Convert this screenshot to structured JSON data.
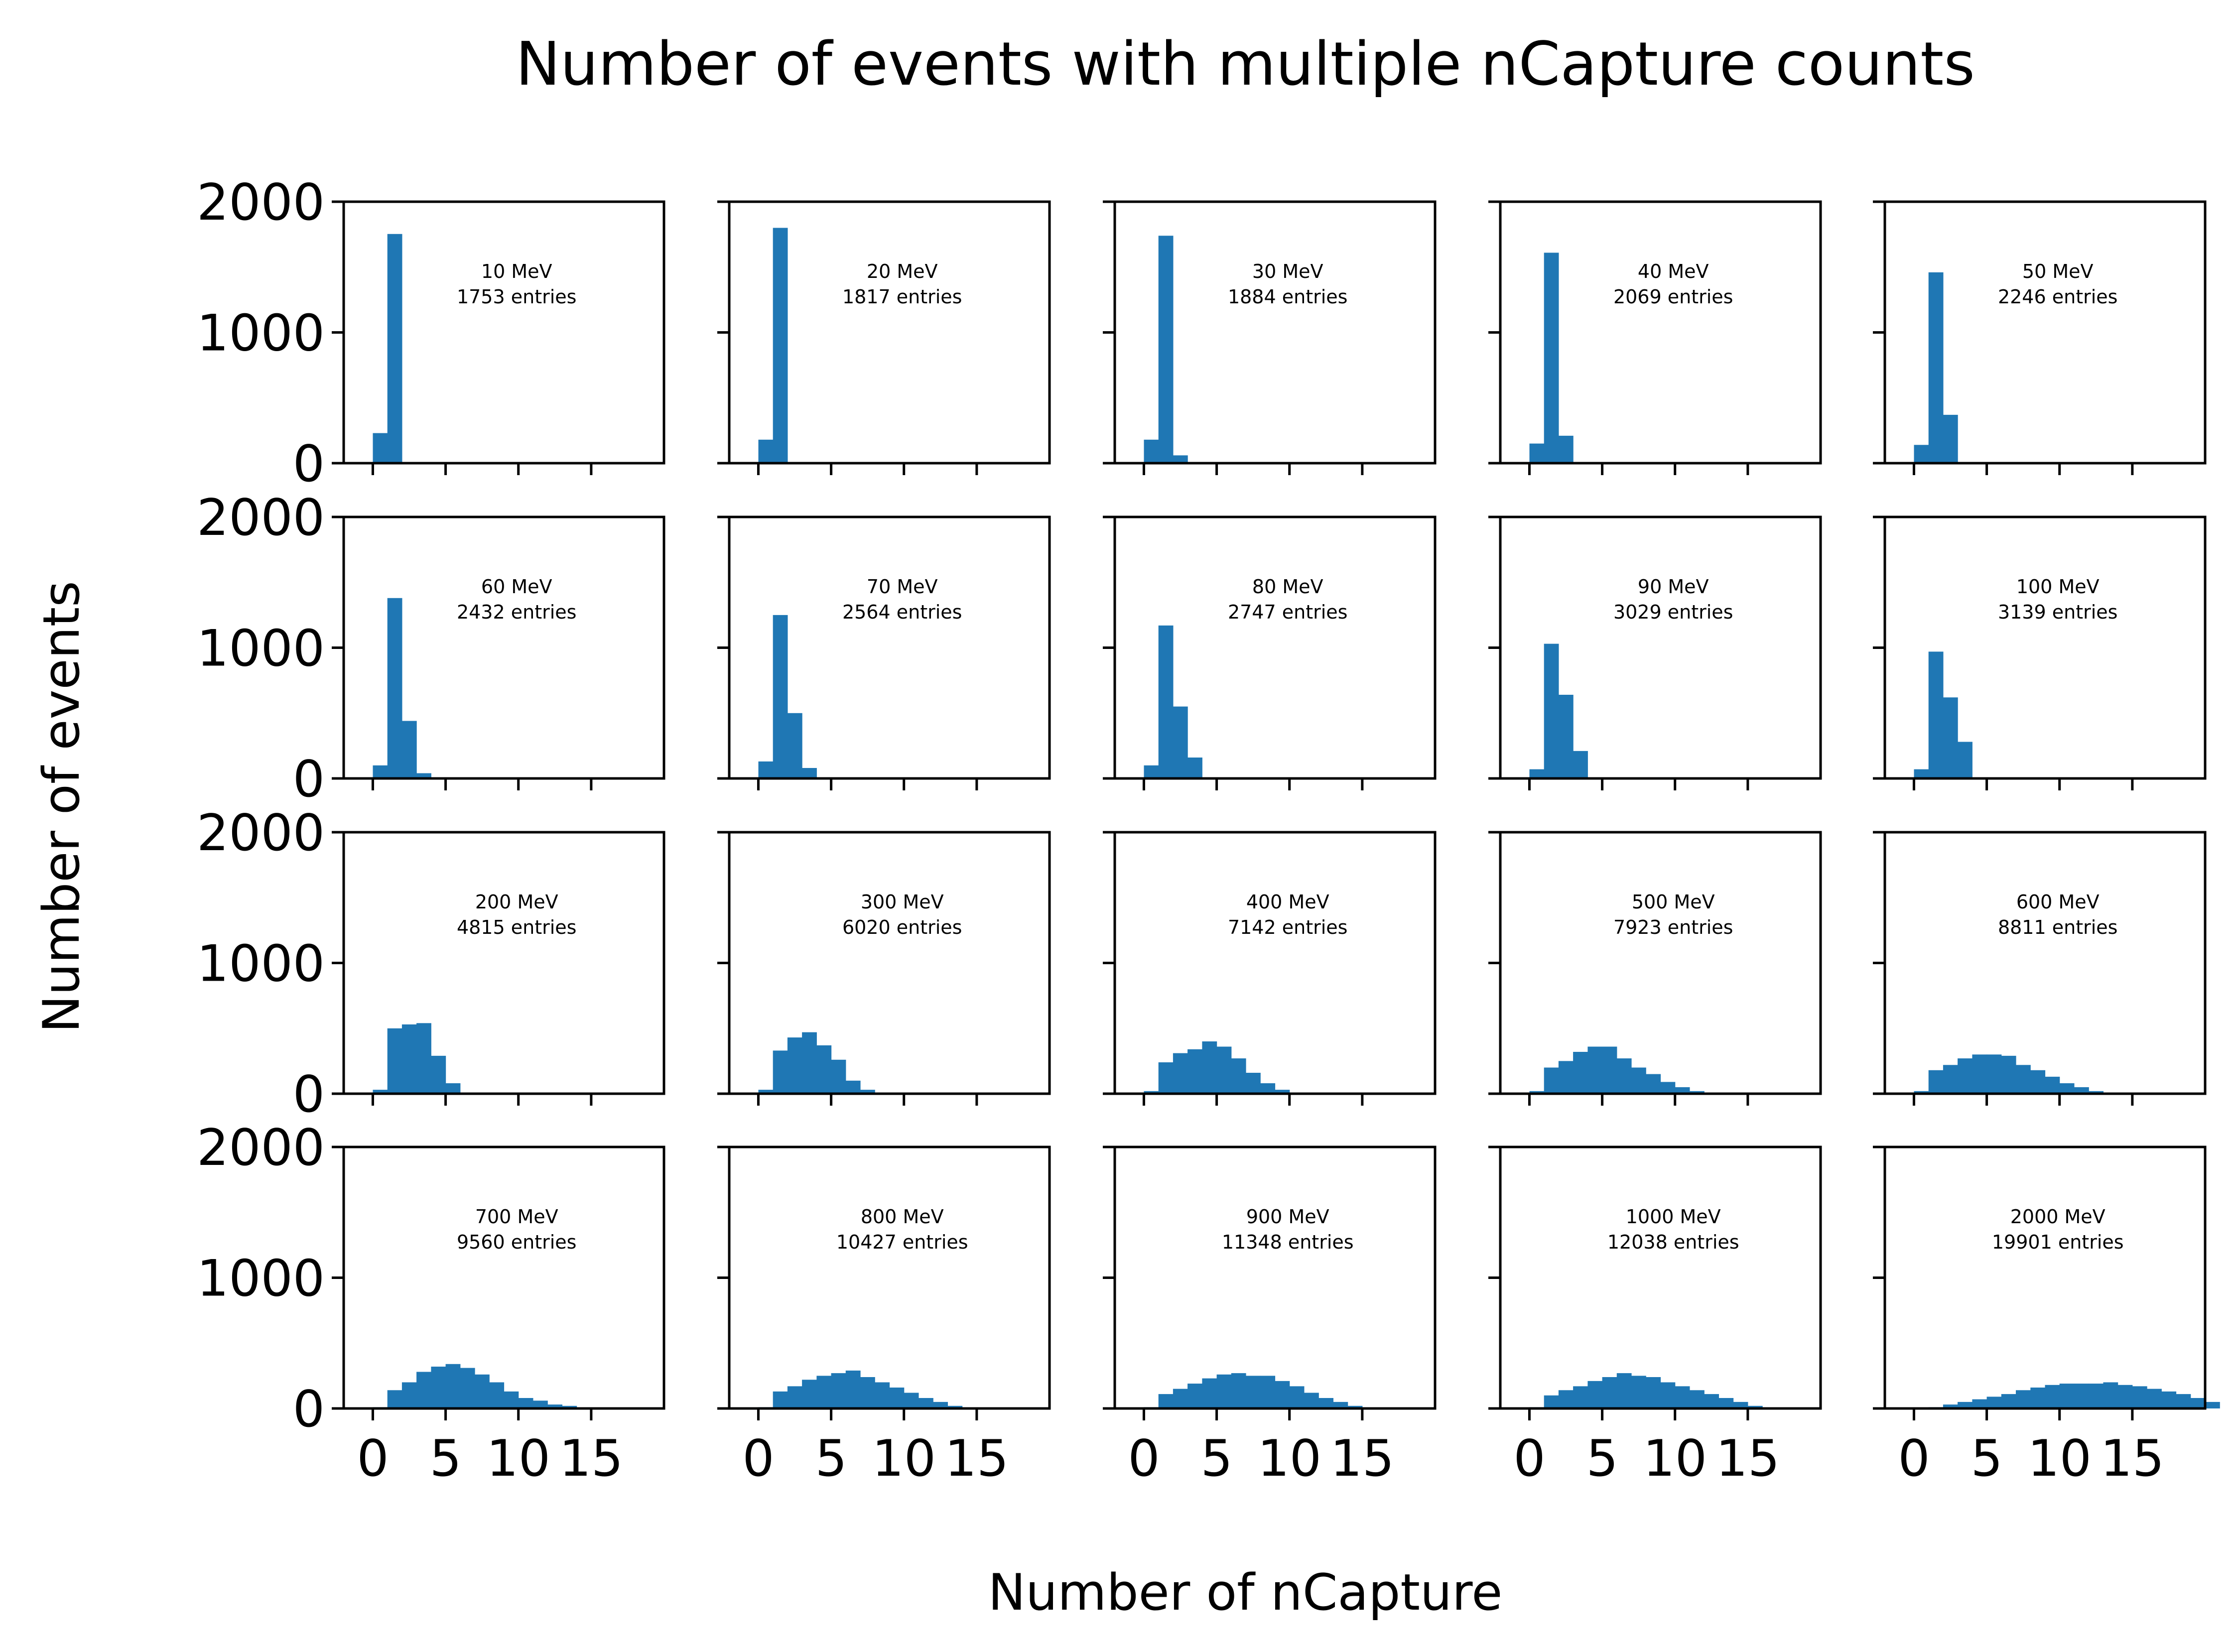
{
  "figure": {
    "title": "Number of events with multiple nCapture counts",
    "xlabel": "Number of nCapture",
    "ylabel": "Number of events"
  },
  "style": {
    "bar_color": "#1f77b4",
    "axes_color": "#000000",
    "background": "#ffffff"
  },
  "chart_data": {
    "type": "bar",
    "layout": "4 rows x 5 columns of histogram panels, shared x and y axes",
    "xlim": [
      -2,
      20
    ],
    "ylim": [
      0,
      2000
    ],
    "xticks": [
      0,
      5,
      10,
      15
    ],
    "xtick_labels": [
      "0",
      "5",
      "10",
      "15"
    ],
    "yticks": [
      0,
      1000,
      2000
    ],
    "ytick_labels": [
      "0",
      "1000",
      "2000"
    ],
    "grid": false,
    "bins_start": 0,
    "bin_width": 1,
    "panels": [
      {
        "energy": "10 MeV",
        "entries": "1753 entries",
        "values": [
          230,
          1753,
          0
        ]
      },
      {
        "energy": "20 MeV",
        "entries": "1817 entries",
        "values": [
          180,
          1800,
          0
        ]
      },
      {
        "energy": "30 MeV",
        "entries": "1884 entries",
        "values": [
          180,
          1740,
          60,
          0
        ]
      },
      {
        "energy": "40 MeV",
        "entries": "2069 entries",
        "values": [
          150,
          1610,
          210,
          0
        ]
      },
      {
        "energy": "50 MeV",
        "entries": "2246 entries",
        "values": [
          140,
          1460,
          370,
          0
        ]
      },
      {
        "energy": "60 MeV",
        "entries": "2432 entries",
        "values": [
          100,
          1380,
          440,
          40,
          0
        ]
      },
      {
        "energy": "70 MeV",
        "entries": "2564 entries",
        "values": [
          130,
          1250,
          500,
          80,
          0
        ]
      },
      {
        "energy": "80 MeV",
        "entries": "2747 entries",
        "values": [
          100,
          1170,
          550,
          160,
          0
        ]
      },
      {
        "energy": "90 MeV",
        "entries": "3029 entries",
        "values": [
          70,
          1030,
          640,
          210,
          0
        ]
      },
      {
        "energy": "100 MeV",
        "entries": "3139 entries",
        "values": [
          70,
          970,
          620,
          280,
          0
        ]
      },
      {
        "energy": "200 MeV",
        "entries": "4815 entries",
        "values": [
          30,
          500,
          530,
          540,
          290,
          80,
          0
        ]
      },
      {
        "energy": "300 MeV",
        "entries": "6020 entries",
        "values": [
          30,
          330,
          430,
          470,
          370,
          260,
          100,
          30,
          0
        ]
      },
      {
        "energy": "400 MeV",
        "entries": "7142 entries",
        "values": [
          20,
          240,
          310,
          340,
          400,
          360,
          270,
          160,
          80,
          30,
          0
        ]
      },
      {
        "energy": "500 MeV",
        "entries": "7923 entries",
        "values": [
          20,
          200,
          250,
          320,
          360,
          360,
          270,
          200,
          150,
          90,
          50,
          20,
          0
        ]
      },
      {
        "energy": "600 MeV",
        "entries": "8811 entries",
        "values": [
          20,
          180,
          220,
          270,
          300,
          300,
          290,
          220,
          180,
          130,
          80,
          50,
          20
        ]
      },
      {
        "energy": "700 MeV",
        "entries": "9560 entries",
        "values": [
          10,
          140,
          200,
          280,
          320,
          340,
          310,
          260,
          200,
          130,
          80,
          60,
          30,
          20
        ]
      },
      {
        "energy": "800 MeV",
        "entries": "10427 entries",
        "values": [
          10,
          130,
          170,
          220,
          250,
          270,
          290,
          240,
          200,
          160,
          120,
          80,
          50,
          20
        ]
      },
      {
        "energy": "900 MeV",
        "entries": "11348 entries",
        "values": [
          10,
          110,
          150,
          190,
          230,
          260,
          270,
          250,
          250,
          210,
          170,
          120,
          80,
          50,
          20
        ]
      },
      {
        "energy": "1000 MeV",
        "entries": "12038 entries",
        "values": [
          10,
          100,
          140,
          170,
          210,
          240,
          270,
          250,
          240,
          200,
          170,
          140,
          110,
          80,
          50,
          20
        ]
      },
      {
        "energy": "2000 MeV",
        "entries": "19901 entries",
        "values": [
          0,
          10,
          30,
          50,
          70,
          90,
          110,
          140,
          160,
          180,
          190,
          190,
          190,
          200,
          180,
          170,
          150,
          130,
          110,
          80,
          50
        ]
      }
    ]
  }
}
